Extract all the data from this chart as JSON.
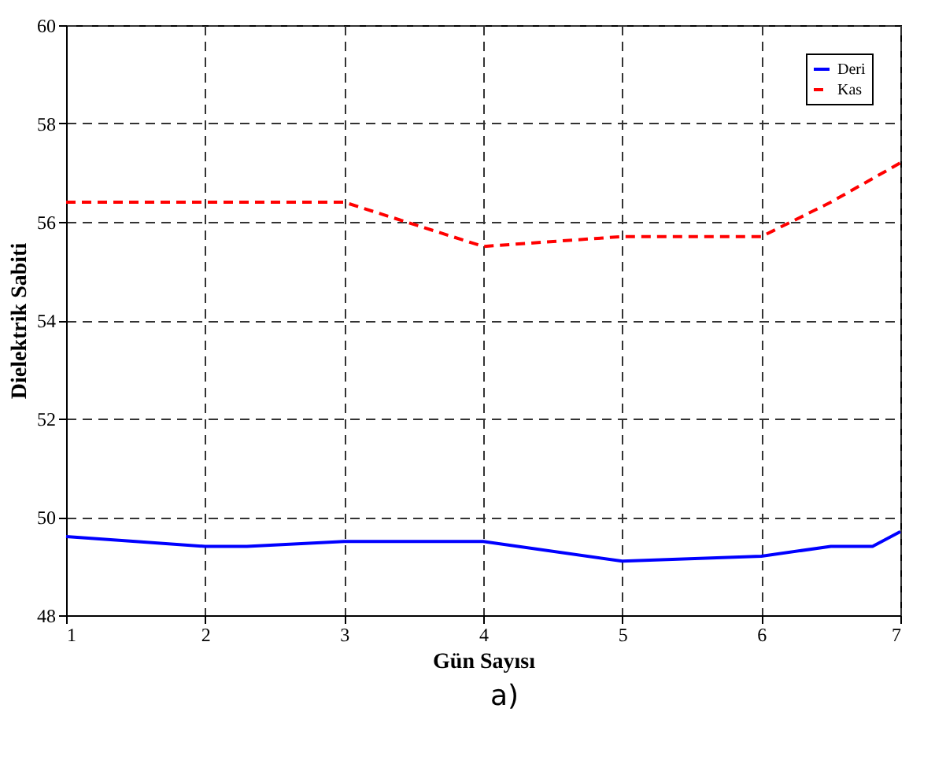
{
  "chart_data": {
    "type": "line",
    "xlabel": "Gün Sayısı",
    "ylabel": "Dielektrik Sabiti",
    "xlim": [
      1,
      7
    ],
    "ylim": [
      48,
      60
    ],
    "xticks": [
      1,
      2,
      3,
      4,
      5,
      6,
      7
    ],
    "yticks": [
      48,
      50,
      52,
      54,
      56,
      58,
      60
    ],
    "grid": true,
    "legend": "top right",
    "annotations": [
      "a)"
    ],
    "series": [
      {
        "name": "Deri",
        "color": "#0000ff",
        "line_style": "solid",
        "x": [
          1,
          1.5,
          2,
          2.3,
          3,
          4,
          5,
          6,
          6.5,
          6.8,
          7
        ],
        "values": [
          49.6,
          49.5,
          49.4,
          49.4,
          49.5,
          49.5,
          49.1,
          49.2,
          49.4,
          49.4,
          49.7
        ]
      },
      {
        "name": "Kas",
        "color": "#ff0000",
        "line_style": "dashed",
        "x": [
          1,
          2,
          3,
          4,
          5,
          6,
          6.5,
          7
        ],
        "values": [
          56.4,
          56.4,
          56.4,
          55.5,
          55.7,
          55.7,
          56.4,
          57.2
        ]
      }
    ]
  }
}
